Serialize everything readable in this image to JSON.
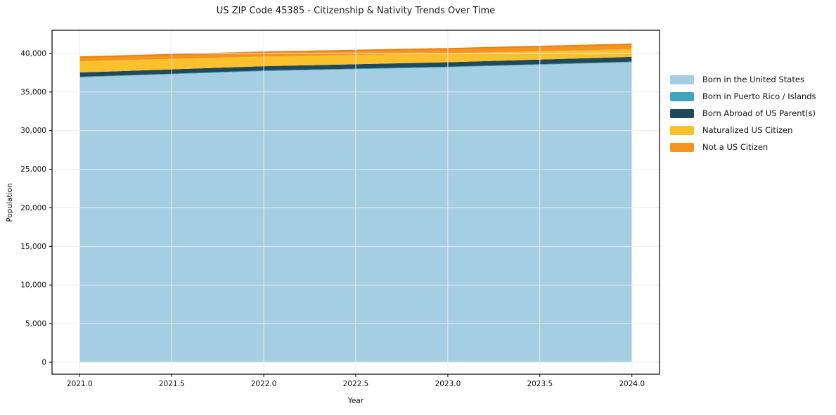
{
  "chart_data": {
    "type": "area",
    "stacked": true,
    "title": "US ZIP Code 45385 - Citizenship & Nativity Trends Over Time",
    "xlabel": "Year",
    "ylabel": "Population",
    "x": [
      2021,
      2022,
      2023,
      2024
    ],
    "series": [
      {
        "name": "Born in the United States",
        "color": "#A5CEE3",
        "values": [
          36900,
          37700,
          38200,
          38850
        ]
      },
      {
        "name": "Born in Puerto Rico / Islands",
        "color": "#41A5BD",
        "values": [
          80,
          80,
          80,
          80
        ]
      },
      {
        "name": "Born Abroad of US Parent(s)",
        "color": "#21495C",
        "values": [
          550,
          560,
          580,
          620
        ]
      },
      {
        "name": "Naturalized US Citizen",
        "color": "#FBC12D",
        "values": [
          1450,
          1250,
          1150,
          1000
        ]
      },
      {
        "name": "Not a US Citizen",
        "color": "#F6931E",
        "values": [
          550,
          570,
          600,
          640
        ]
      }
    ],
    "total_line_color": "#E8820F",
    "xlim": [
      2020.85,
      2024.15
    ],
    "ylim": [
      -1550,
      43000
    ],
    "x_ticks": [
      2021.0,
      2021.5,
      2022.0,
      2022.5,
      2023.0,
      2023.5,
      2024.0
    ],
    "x_tick_labels": [
      "2021.0",
      "2021.5",
      "2022.0",
      "2022.5",
      "2023.0",
      "2023.5",
      "2024.0"
    ],
    "y_ticks": [
      0,
      5000,
      10000,
      15000,
      20000,
      25000,
      30000,
      35000,
      40000
    ],
    "y_tick_labels": [
      "0",
      "5,000",
      "10,000",
      "15,000",
      "20,000",
      "25,000",
      "30,000",
      "35,000",
      "40,000"
    ],
    "grid": true,
    "grid_color": "#ececec",
    "legend_position": "right-outside"
  }
}
